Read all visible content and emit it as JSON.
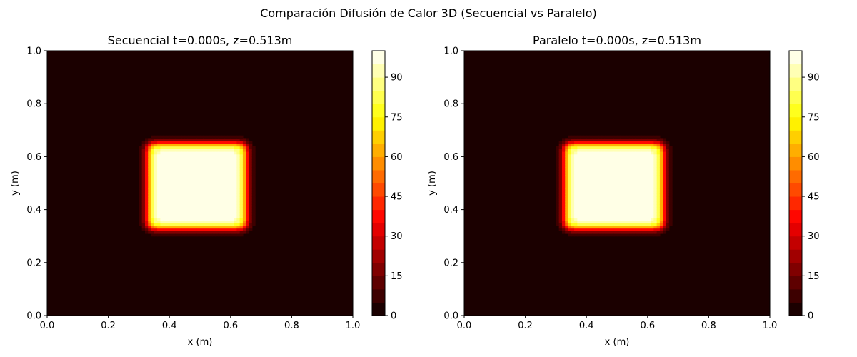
{
  "figure": {
    "suptitle": "Comparación Difusión de Calor 3D (Secuencial vs Paralelo)"
  },
  "chart_data": [
    {
      "type": "heatmap",
      "title": "Secuencial t=0.000s, z=0.513m",
      "xlabel": "x (m)",
      "ylabel": "y (m)",
      "xlim": [
        0.0,
        1.0
      ],
      "ylim": [
        0.0,
        1.0
      ],
      "xticks": [
        "0.0",
        "0.2",
        "0.4",
        "0.6",
        "0.8",
        "1.0"
      ],
      "yticks": [
        "0.0",
        "0.2",
        "0.4",
        "0.6",
        "0.8",
        "1.0"
      ],
      "grid": false,
      "colormap": "hot",
      "color_range": [
        0,
        100
      ],
      "color_levels": 20,
      "colorbar_ticks": [
        "0",
        "15",
        "30",
        "45",
        "60",
        "75",
        "90"
      ],
      "field": {
        "background_value": 0,
        "hot_region": {
          "x": [
            0.33,
            0.65
          ],
          "y": [
            0.33,
            0.65
          ],
          "value": 100
        },
        "transition_width": 0.025
      }
    },
    {
      "type": "heatmap",
      "title": "Paralelo t=0.000s, z=0.513m",
      "xlabel": "x (m)",
      "ylabel": "y (m)",
      "xlim": [
        0.0,
        1.0
      ],
      "ylim": [
        0.0,
        1.0
      ],
      "xticks": [
        "0.0",
        "0.2",
        "0.4",
        "0.6",
        "0.8",
        "1.0"
      ],
      "yticks": [
        "0.0",
        "0.2",
        "0.4",
        "0.6",
        "0.8",
        "1.0"
      ],
      "grid": false,
      "colormap": "hot",
      "color_range": [
        0,
        100
      ],
      "color_levels": 20,
      "colorbar_ticks": [
        "0",
        "15",
        "30",
        "45",
        "60",
        "75",
        "90"
      ],
      "field": {
        "background_value": 0,
        "hot_region": {
          "x": [
            0.33,
            0.65
          ],
          "y": [
            0.33,
            0.65
          ],
          "value": 100
        },
        "transition_width": 0.025
      }
    }
  ]
}
